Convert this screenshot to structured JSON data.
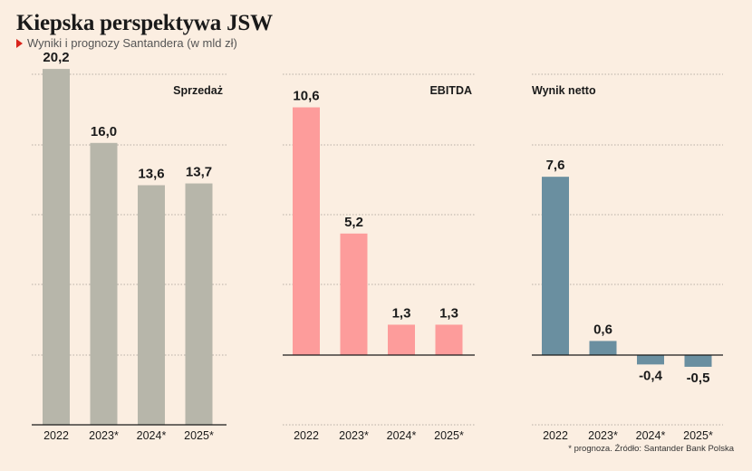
{
  "header": {
    "title": "Kiepska perspektywa JSW",
    "subtitle": "Wyniki i prognozy Santandera (w mld zł)"
  },
  "footer": {
    "source": "* prognoza. Źródło: Santander Bank Polska"
  },
  "colors": {
    "background": "#fbeee1",
    "sprzedaz": "#b7b6aa",
    "ebitda": "#fd9c9b",
    "netto": "#6a8fa0",
    "accent": "#d9241b"
  },
  "chart_data": [
    {
      "type": "bar",
      "title": "Sprzedaż",
      "categories": [
        "2022",
        "2023*",
        "2024*",
        "2025*"
      ],
      "values": [
        20.2,
        16.0,
        13.6,
        13.7
      ],
      "value_labels": [
        "20,2",
        "16,0",
        "13,6",
        "13,7"
      ],
      "ylim": [
        0,
        20
      ],
      "grid": true,
      "color": "#b7b6aa"
    },
    {
      "type": "bar",
      "title": "EBITDA",
      "categories": [
        "2022",
        "2023*",
        "2024*",
        "2025*"
      ],
      "values": [
        10.6,
        5.2,
        1.3,
        1.3
      ],
      "value_labels": [
        "10,6",
        "5,2",
        "1,3",
        "1,3"
      ],
      "ylim": [
        -3,
        12
      ],
      "grid": true,
      "color": "#fd9c9b"
    },
    {
      "type": "bar",
      "title": "Wynik netto",
      "categories": [
        "2022",
        "2023*",
        "2024*",
        "2025*"
      ],
      "values": [
        7.6,
        0.6,
        -0.4,
        -0.5
      ],
      "value_labels": [
        "7,6",
        "0,6",
        "-0,4",
        "-0,5"
      ],
      "ylim": [
        -2,
        10
      ],
      "grid": true,
      "color": "#6a8fa0"
    }
  ]
}
